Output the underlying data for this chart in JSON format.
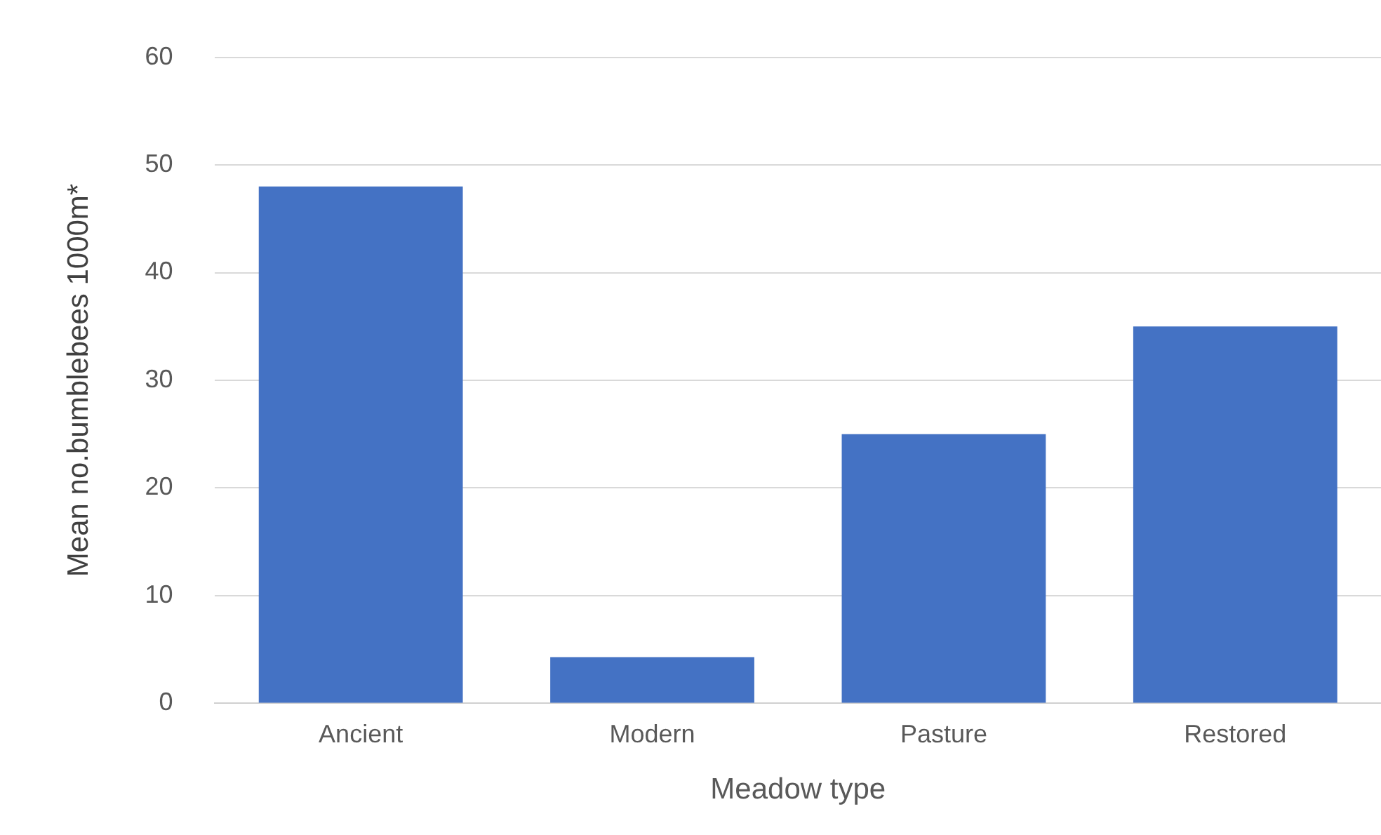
{
  "chart_data": {
    "type": "bar",
    "xlabel": "Meadow type",
    "ylabel": "Mean no.bumblebees 1000m*",
    "categories": [
      "Ancient",
      "Modern",
      "Pasture",
      "Restored"
    ],
    "values": [
      48,
      4.3,
      25,
      35
    ],
    "color": "#4472c4",
    "ylim": [
      0,
      60
    ],
    "yticks": [
      0,
      10,
      20,
      30,
      40,
      50,
      60
    ],
    "grid": "y",
    "legend": false
  }
}
